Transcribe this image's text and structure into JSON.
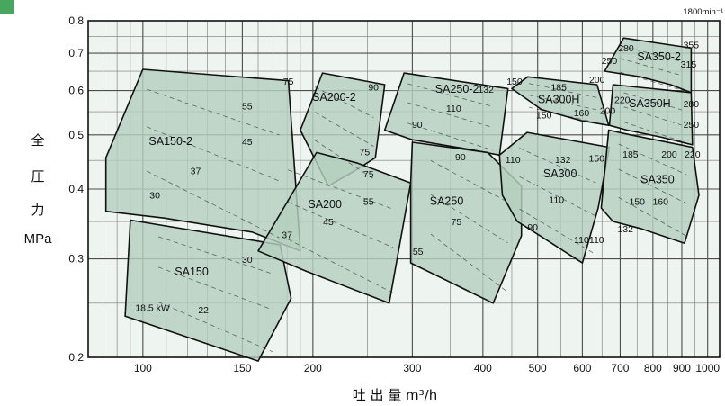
{
  "chart_data": {
    "type": "area",
    "title": "",
    "xlabel": "吐 出 量  m³/h",
    "ylabel": [
      "全",
      "圧",
      "力",
      "MPa"
    ],
    "speed_label": "1800min⁻¹",
    "x_scale": "log",
    "y_scale": "log",
    "xlim": [
      80,
      1050
    ],
    "ylim": [
      0.2,
      0.8
    ],
    "x_ticks": [
      100,
      150,
      200,
      300,
      400,
      500,
      600,
      700,
      800,
      900,
      1000
    ],
    "y_ticks": [
      0.2,
      0.3,
      0.4,
      0.5,
      0.6,
      0.7,
      0.8
    ],
    "y_tick_labels": [
      "0.2",
      "0.3",
      "0.4",
      "0.5",
      "0.6",
      "0.7",
      "0.8"
    ],
    "grid": true,
    "colors": {
      "region_fill": "#b4cfc0",
      "background": "#eef4f0",
      "grid": "#4d4d4d",
      "corner": "#49a65e"
    },
    "series": [
      {
        "name": "SA150-2",
        "label_at": [
          112,
          0.48
        ],
        "outline": [
          [
            86,
            0.455
          ],
          [
            100,
            0.655
          ],
          [
            181,
            0.625
          ],
          [
            190,
            0.31
          ],
          [
            156,
            0.335
          ],
          [
            109,
            0.355
          ],
          [
            86,
            0.365
          ]
        ],
        "power_labels": [
          {
            "text": "75",
            "at": [
              181,
              0.615
            ]
          },
          {
            "text": "55",
            "at": [
              153,
              0.555
            ]
          },
          {
            "text": "45",
            "at": [
              153,
              0.48
            ]
          },
          {
            "text": "37",
            "at": [
              124,
              0.425
            ]
          },
          {
            "text": "30",
            "at": [
              105,
              0.385
            ]
          }
        ]
      },
      {
        "name": "SA150",
        "label_at": [
          122,
          0.28
        ],
        "outline": [
          [
            95,
            0.352
          ],
          [
            175,
            0.318
          ],
          [
            183,
            0.255
          ],
          [
            160,
            0.197
          ],
          [
            93,
            0.237
          ]
        ],
        "power_labels": [
          {
            "text": "30",
            "at": [
              153,
              0.295
            ]
          },
          {
            "text": "22",
            "at": [
              128,
              0.24
            ]
          },
          {
            "text": "18.5 kW",
            "at": [
              104,
              0.242
            ]
          }
        ]
      },
      {
        "name": "SA200-2",
        "label_at": [
          218,
          0.575
        ],
        "outline": [
          [
            190,
            0.51
          ],
          [
            208,
            0.645
          ],
          [
            268,
            0.615
          ],
          [
            258,
            0.455
          ],
          [
            236,
            0.43
          ],
          [
            213,
            0.405
          ]
        ],
        "power_labels": [
          {
            "text": "90",
            "at": [
              256,
              0.6
            ]
          },
          {
            "text": "75",
            "at": [
              247,
              0.46
            ]
          }
        ]
      },
      {
        "name": "SA200",
        "label_at": [
          210,
          0.37
        ],
        "outline": [
          [
            160,
            0.31
          ],
          [
            203,
            0.465
          ],
          [
            240,
            0.445
          ],
          [
            298,
            0.41
          ],
          [
            273,
            0.25
          ],
          [
            195,
            0.285
          ]
        ],
        "power_labels": [
          {
            "text": "75",
            "at": [
              251,
              0.42
            ]
          },
          {
            "text": "55",
            "at": [
              251,
              0.375
            ]
          },
          {
            "text": "45",
            "at": [
              213,
              0.345
            ]
          },
          {
            "text": "37",
            "at": [
              180,
              0.327
            ]
          }
        ]
      },
      {
        "name": "SA250-2",
        "label_at": [
          360,
          0.595
        ],
        "outline": [
          [
            268,
            0.51
          ],
          [
            290,
            0.645
          ],
          [
            443,
            0.605
          ],
          [
            428,
            0.46
          ],
          [
            383,
            0.47
          ],
          [
            300,
            0.49
          ]
        ],
        "power_labels": [
          {
            "text": "150",
            "at": [
              455,
              0.615
            ]
          },
          {
            "text": "132",
            "at": [
              405,
              0.595
            ]
          },
          {
            "text": "110",
            "at": [
              355,
              0.55
            ]
          },
          {
            "text": "90",
            "at": [
              306,
              0.515
            ]
          }
        ]
      },
      {
        "name": "SA250",
        "label_at": [
          345,
          0.375
        ],
        "outline": [
          [
            298,
            0.41
          ],
          [
            298,
            0.295
          ],
          [
            417,
            0.25
          ],
          [
            468,
            0.33
          ],
          [
            468,
            0.405
          ],
          [
            408,
            0.465
          ],
          [
            300,
            0.485
          ]
        ],
        "power_labels": [
          {
            "text": "110",
            "at": [
              452,
              0.445
            ]
          },
          {
            "text": "90",
            "at": [
              365,
              0.45
            ]
          },
          {
            "text": "75",
            "at": [
              359,
              0.345
            ]
          },
          {
            "text": "55",
            "at": [
              307,
              0.305
            ]
          }
        ]
      },
      {
        "name": "SA300H",
        "label_at": [
          545,
          0.57
        ],
        "outline": [
          [
            450,
            0.605
          ],
          [
            480,
            0.635
          ],
          [
            637,
            0.615
          ],
          [
            668,
            0.52
          ],
          [
            598,
            0.53
          ],
          [
            508,
            0.555
          ]
        ],
        "power_labels": [
          {
            "text": "200",
            "at": [
              637,
              0.62
            ]
          },
          {
            "text": "185",
            "at": [
              545,
              0.6
            ]
          },
          {
            "text": "160",
            "at": [
              598,
              0.54
            ]
          },
          {
            "text": "150",
            "at": [
              513,
              0.535
            ]
          }
        ]
      },
      {
        "name": "SA300",
        "label_at": [
          548,
          0.42
        ],
        "outline": [
          [
            428,
            0.46
          ],
          [
            479,
            0.505
          ],
          [
            670,
            0.475
          ],
          [
            640,
            0.37
          ],
          [
            600,
            0.295
          ],
          [
            505,
            0.33
          ],
          [
            460,
            0.35
          ],
          [
            433,
            0.39
          ]
        ],
        "power_labels": [
          {
            "text": "150",
            "at": [
              636,
              0.448
            ]
          },
          {
            "text": "132",
            "at": [
              554,
              0.445
            ]
          },
          {
            "text": "110",
            "at": [
              540,
              0.378
            ]
          },
          {
            "text": "110",
            "at": [
              598,
              0.32
            ]
          },
          {
            "text": "90",
            "at": [
              490,
              0.337
            ]
          }
        ]
      },
      {
        "name": "SA350-2",
        "label_at": [
          820,
          0.68
        ],
        "outline": [
          [
            657,
            0.65
          ],
          [
            710,
            0.745
          ],
          [
            935,
            0.715
          ],
          [
            935,
            0.595
          ],
          [
            860,
            0.615
          ],
          [
            760,
            0.635
          ]
        ],
        "power_labels": [
          {
            "text": "355",
            "at": [
              935,
              0.715
            ]
          },
          {
            "text": "315",
            "at": [
              925,
              0.66
            ]
          },
          {
            "text": "280",
            "at": [
              717,
              0.705
            ]
          },
          {
            "text": "250",
            "at": [
              670,
              0.67
            ]
          }
        ]
      },
      {
        "name": "SA350H",
        "label_at": [
          790,
          0.56
        ],
        "outline": [
          [
            670,
            0.52
          ],
          [
            680,
            0.615
          ],
          [
            935,
            0.595
          ],
          [
            940,
            0.48
          ],
          [
            830,
            0.495
          ],
          [
            720,
            0.51
          ]
        ],
        "power_labels": [
          {
            "text": "220",
            "at": [
              706,
              0.57
            ]
          },
          {
            "text": "280",
            "at": [
              935,
              0.56
            ]
          },
          {
            "text": "250",
            "at": [
              935,
              0.515
            ]
          },
          {
            "text": "200",
            "at": [
              665,
              0.545
            ]
          }
        ]
      },
      {
        "name": "SA350",
        "label_at": [
          815,
          0.41
        ],
        "outline": [
          [
            668,
            0.51
          ],
          [
            730,
            0.5
          ],
          [
            940,
            0.475
          ],
          [
            965,
            0.39
          ],
          [
            910,
            0.32
          ],
          [
            760,
            0.34
          ],
          [
            680,
            0.35
          ],
          [
            648,
            0.37
          ]
        ],
        "power_labels": [
          {
            "text": "220",
            "at": [
              940,
              0.455
            ]
          },
          {
            "text": "200",
            "at": [
              855,
              0.455
            ]
          },
          {
            "text": "185",
            "at": [
              730,
              0.455
            ]
          },
          {
            "text": "160",
            "at": [
              825,
              0.375
            ]
          },
          {
            "text": "150",
            "at": [
              750,
              0.375
            ]
          },
          {
            "text": "132",
            "at": [
              715,
              0.335
            ]
          },
          {
            "text": "110",
            "at": [
              636,
              0.32
            ]
          }
        ]
      }
    ]
  }
}
